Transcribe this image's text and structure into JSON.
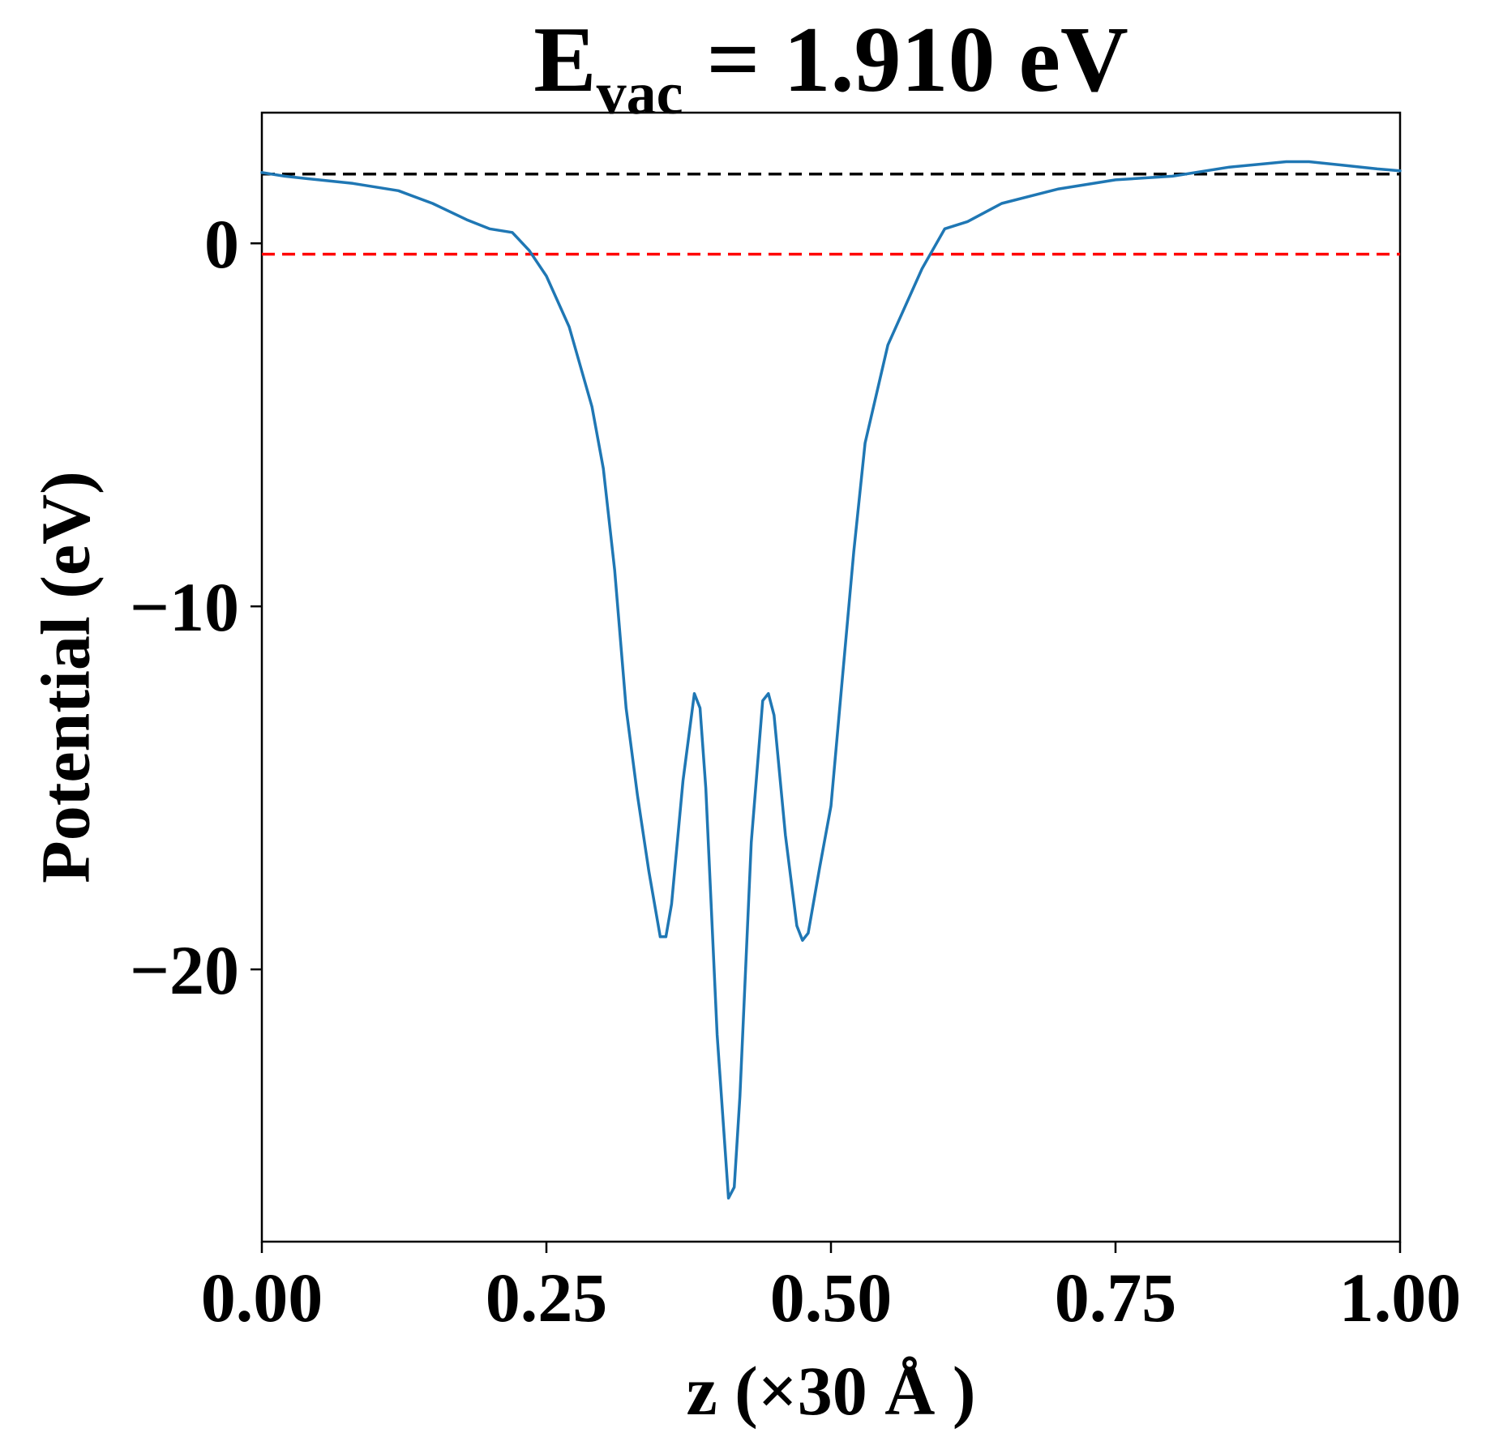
{
  "chart_data": {
    "type": "line",
    "title_main": "E",
    "title_sub": "vac",
    "title_rest": " = 1.910 eV",
    "xlabel": "z (×30 Å )",
    "ylabel": "Potential (eV)",
    "xlim": [
      0.0,
      1.0
    ],
    "ylim": [
      -27.5,
      3.6
    ],
    "grid": false,
    "x_ticks": [
      0.0,
      0.25,
      0.5,
      0.75,
      1.0
    ],
    "x_tick_labels": [
      "0.00",
      "0.25",
      "0.50",
      "0.75",
      "1.00"
    ],
    "y_ticks": [
      0,
      -10,
      -20
    ],
    "y_tick_labels": [
      "0",
      "−10",
      "−20"
    ],
    "series": [
      {
        "color": "#1f77b4",
        "x": [
          0.0,
          0.02,
          0.05,
          0.08,
          0.1,
          0.12,
          0.15,
          0.18,
          0.2,
          0.22,
          0.235,
          0.25,
          0.27,
          0.29,
          0.3,
          0.31,
          0.32,
          0.33,
          0.34,
          0.35,
          0.355,
          0.36,
          0.37,
          0.38,
          0.385,
          0.39,
          0.4,
          0.41,
          0.415,
          0.42,
          0.43,
          0.44,
          0.445,
          0.45,
          0.46,
          0.47,
          0.475,
          0.48,
          0.49,
          0.5,
          0.51,
          0.52,
          0.53,
          0.55,
          0.58,
          0.6,
          0.62,
          0.65,
          0.7,
          0.75,
          0.8,
          0.85,
          0.9,
          0.92,
          0.95,
          0.98,
          1.0
        ],
        "y": [
          1.95,
          1.85,
          1.75,
          1.65,
          1.55,
          1.45,
          1.1,
          0.65,
          0.4,
          0.3,
          -0.2,
          -0.9,
          -2.3,
          -4.5,
          -6.2,
          -9.0,
          -12.8,
          -15.2,
          -17.3,
          -19.1,
          -19.1,
          -18.2,
          -14.8,
          -12.4,
          -12.8,
          -15.0,
          -21.8,
          -26.3,
          -26.0,
          -23.5,
          -16.5,
          -12.6,
          -12.4,
          -13.0,
          -16.3,
          -18.8,
          -19.2,
          -19.0,
          -17.2,
          -15.5,
          -12.0,
          -8.5,
          -5.5,
          -2.8,
          -0.7,
          0.4,
          0.6,
          1.1,
          1.5,
          1.75,
          1.85,
          2.1,
          2.25,
          2.25,
          2.15,
          2.05,
          2.0
        ]
      }
    ],
    "hlines": [
      {
        "y": 1.91,
        "color": "#000000",
        "style": "dashed"
      },
      {
        "y": -0.3,
        "color": "#ff0000",
        "style": "dashed"
      }
    ]
  }
}
